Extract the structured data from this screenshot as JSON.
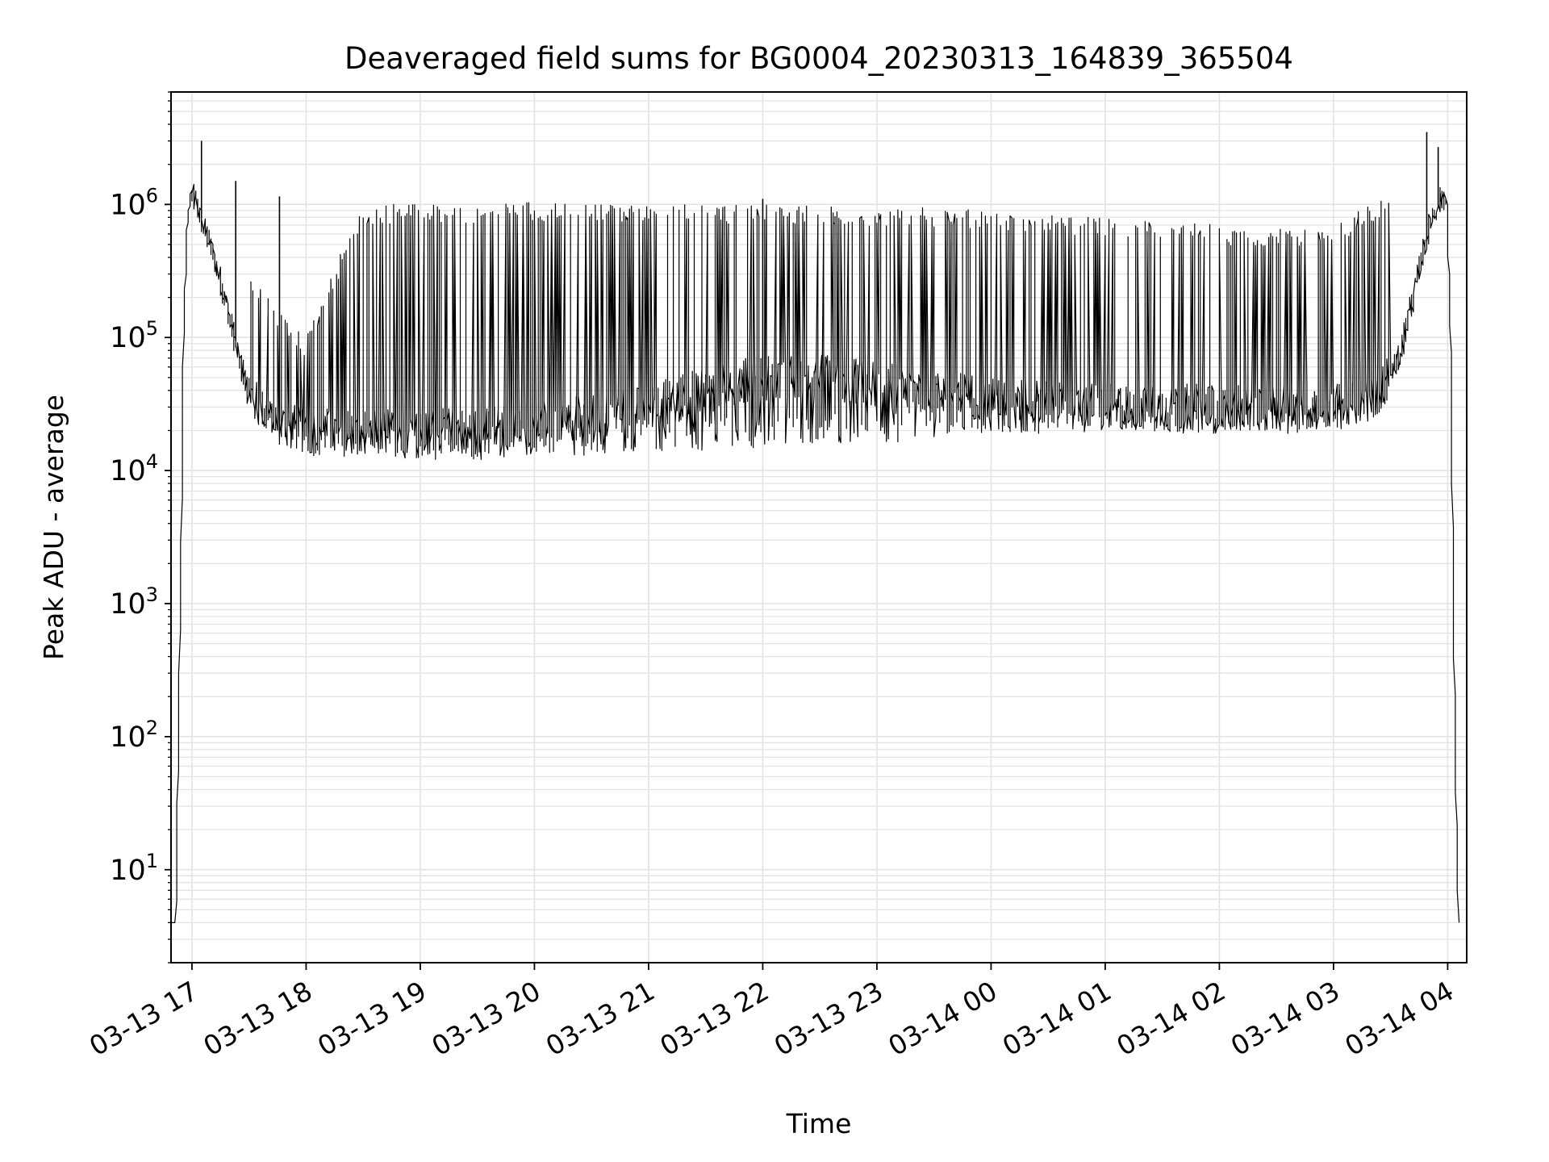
{
  "chart_data": {
    "type": "line",
    "title": "Deaveraged field sums for BG0004_20230313_164839_365504",
    "xlabel": "Time",
    "ylabel": "Peak ADU - average",
    "y_scale": "log",
    "ylim": [
      2,
      7000000
    ],
    "xlim": [
      "2023-03-13 16:49",
      "2023-03-14 04:10"
    ],
    "grid": true,
    "line_color": "#000000",
    "x_ticks": [
      {
        "value": "2023-03-13 17:00",
        "label": "03-13 17"
      },
      {
        "value": "2023-03-13 18:00",
        "label": "03-13 18"
      },
      {
        "value": "2023-03-13 19:00",
        "label": "03-13 19"
      },
      {
        "value": "2023-03-13 20:00",
        "label": "03-13 20"
      },
      {
        "value": "2023-03-13 21:00",
        "label": "03-13 21"
      },
      {
        "value": "2023-03-13 22:00",
        "label": "03-13 22"
      },
      {
        "value": "2023-03-13 23:00",
        "label": "03-13 23"
      },
      {
        "value": "2023-03-14 00:00",
        "label": "03-14 00"
      },
      {
        "value": "2023-03-14 01:00",
        "label": "03-14 01"
      },
      {
        "value": "2023-03-14 02:00",
        "label": "03-14 02"
      },
      {
        "value": "2023-03-14 03:00",
        "label": "03-14 03"
      },
      {
        "value": "2023-03-14 04:00",
        "label": "03-14 04"
      }
    ],
    "y_ticks": [
      {
        "value": 10,
        "base": "10",
        "exp": "1"
      },
      {
        "value": 100,
        "base": "10",
        "exp": "2"
      },
      {
        "value": 1000,
        "base": "10",
        "exp": "3"
      },
      {
        "value": 10000,
        "base": "10",
        "exp": "4"
      },
      {
        "value": 100000,
        "base": "10",
        "exp": "5"
      },
      {
        "value": 1000000,
        "base": "10",
        "exp": "6"
      }
    ],
    "series": [
      {
        "x": [
          "2023-03-13 16:48",
          "2023-03-13 16:50",
          "2023-03-13 16:52",
          "2023-03-13 16:54",
          "2023-03-13 16:56",
          "2023-03-13 16:58",
          "2023-03-13 17:00",
          "2023-03-13 17:03",
          "2023-03-13 17:06",
          "2023-03-13 17:10",
          "2023-03-13 17:15",
          "2023-03-13 17:20",
          "2023-03-13 17:25",
          "2023-03-13 17:30",
          "2023-03-13 17:35",
          "2023-03-13 17:40",
          "2023-03-13 17:50",
          "2023-03-13 18:00",
          "2023-03-13 18:30",
          "2023-03-13 19:00",
          "2023-03-13 19:30",
          "2023-03-13 20:00",
          "2023-03-13 20:30",
          "2023-03-13 21:00",
          "2023-03-13 21:30",
          "2023-03-13 22:00",
          "2023-03-13 22:30",
          "2023-03-13 23:00",
          "2023-03-13 23:30",
          "2023-03-14 00:00",
          "2023-03-14 00:30",
          "2023-03-14 01:00",
          "2023-03-14 01:30",
          "2023-03-14 02:00",
          "2023-03-14 02:30",
          "2023-03-14 03:00",
          "2023-03-14 03:15",
          "2023-03-14 03:25",
          "2023-03-14 03:35",
          "2023-03-14 03:45",
          "2023-03-14 03:52",
          "2023-03-14 03:58",
          "2023-03-14 04:00",
          "2023-03-14 04:02",
          "2023-03-14 04:04",
          "2023-03-14 04:06"
        ],
        "y": [
          4,
          4,
          4,
          300,
          100000,
          700000,
          1200000,
          1000000,
          700000,
          500000,
          280000,
          150000,
          70000,
          40000,
          30000,
          25000,
          22000,
          20000,
          20000,
          20000,
          20000,
          22000,
          25000,
          30000,
          40000,
          50000,
          50000,
          45000,
          40000,
          35000,
          32000,
          30000,
          30000,
          30000,
          30000,
          30000,
          32000,
          40000,
          70000,
          300000,
          800000,
          1200000,
          1000000,
          100000,
          300,
          4
        ],
        "envelope": {
          "x": [
            "2023-03-13 17:30",
            "2023-03-13 18:00",
            "2023-03-13 18:30",
            "2023-03-13 19:00",
            "2023-03-13 19:30",
            "2023-03-13 20:00",
            "2023-03-13 20:30",
            "2023-03-13 21:00",
            "2023-03-13 21:30",
            "2023-03-13 22:00",
            "2023-03-13 22:30",
            "2023-03-13 23:00",
            "2023-03-13 23:30",
            "2023-03-14 00:00",
            "2023-03-14 00:30",
            "2023-03-14 01:00",
            "2023-03-14 01:30",
            "2023-03-14 02:00",
            "2023-03-14 02:30",
            "2023-03-14 03:00",
            "2023-03-14 03:30"
          ],
          "upper": [
            300000,
            100000,
            1000000,
            1000000,
            1000000,
            1050000,
            1050000,
            1000000,
            1000000,
            1000000,
            1000000,
            950000,
            950000,
            900000,
            850000,
            800000,
            750000,
            700000,
            650000,
            700000,
            1200000
          ],
          "lower": [
            25000,
            13000,
            12000,
            12000,
            12000,
            13000,
            13000,
            14000,
            14000,
            15000,
            15000,
            16000,
            17000,
            19000,
            19000,
            19000,
            19000,
            19000,
            19000,
            19000,
            30000
          ]
        },
        "spikes": [
          {
            "x": "2023-03-13 17:05",
            "y": 3000000
          },
          {
            "x": "2023-03-13 17:23",
            "y": 1500000
          },
          {
            "x": "2023-03-13 17:46",
            "y": 1150000
          },
          {
            "x": "2023-03-13 22:00",
            "y": 1100000
          },
          {
            "x": "2023-03-14 03:49",
            "y": 3500000
          },
          {
            "x": "2023-03-14 03:55",
            "y": 2700000
          }
        ]
      }
    ]
  }
}
